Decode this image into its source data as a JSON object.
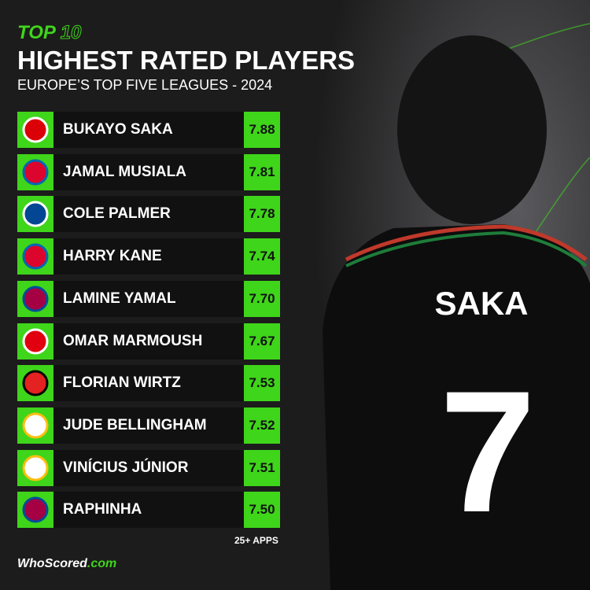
{
  "header": {
    "top": "TOP",
    "top_number": "10",
    "title": "HIGHEST RATED PLAYERS",
    "subtitle": "EUROPE’S TOP FIVE LEAGUES - 2024"
  },
  "table": {
    "rows": [
      [
        "BUKAYO SAKA",
        "7.88"
      ],
      [
        "JAMAL MUSIALA",
        "7.81"
      ],
      [
        "COLE PALMER",
        "7.78"
      ],
      [
        "HARRY KANE",
        "7.74"
      ],
      [
        "LAMINE YAMAL",
        "7.70"
      ],
      [
        "OMAR MARMOUSH",
        "7.67"
      ],
      [
        "FLORIAN WIRTZ",
        "7.53"
      ],
      [
        "JUDE BELLINGHAM",
        "7.52"
      ],
      [
        "VINÍCIUS JÚNIOR",
        "7.51"
      ],
      [
        "RAPHINHA",
        "7.50"
      ]
    ]
  },
  "footer": {
    "note": "25+ APPS",
    "brand": "WhoScored",
    "brand_suffix": ".com"
  },
  "photo": {
    "jersey_name": "SAKA",
    "jersey_number": "7"
  }
}
